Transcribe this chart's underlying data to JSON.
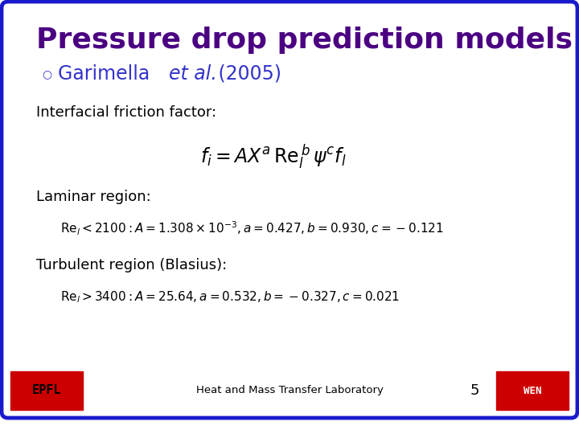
{
  "title": "Pressure drop prediction models",
  "title_color": "#4B0082",
  "bullet_color": "#3333CC",
  "bullet_text": "Garimella",
  "bullet_italic": "et al.",
  "bullet_year": "(2005)",
  "label1": "Interfacial friction factor:",
  "formula_main": "$f_i = AX^a \\, \\mathrm{Re}_l^{\\,b} \\, \\psi^c f_l$",
  "label2": "Laminar region:",
  "formula_laminar": "$\\mathrm{Re}_l < 2100 : A = 1.308\\times10^{-3}, a = 0.427, b = 0.930, c = -0.121$",
  "label3": "Turbulent region (Blasius):",
  "formula_turbulent": "$\\mathrm{Re}_l > 3400 : A = 25.64, a = 0.532, b = -0.327, c = 0.021$",
  "footer_text": "Heat and Mass Transfer Laboratory",
  "page_number": "5",
  "bg_color": "#FFFFFF",
  "border_color": "#1A1ACD",
  "footer_bg": "#FFFFFF",
  "logo_bg": "#CC0000",
  "text_color": "#000000"
}
